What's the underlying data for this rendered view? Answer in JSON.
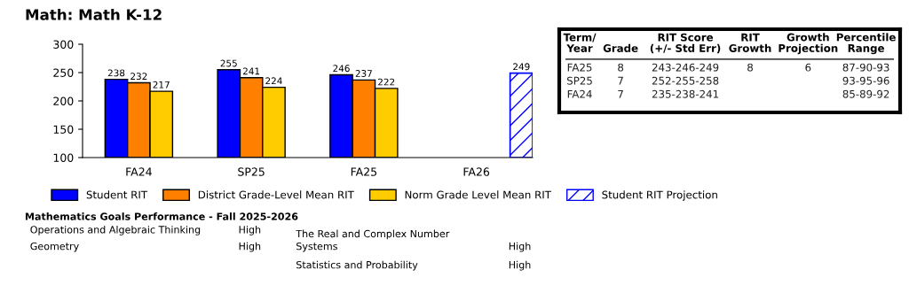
{
  "chart_data": [
    {
      "type": "bar",
      "title": "Math: Math K-12",
      "categories": [
        "FA24",
        "SP25",
        "FA25",
        "FA26"
      ],
      "series": [
        {
          "name": "Student RIT",
          "color": "#0000ff",
          "values": [
            238,
            255,
            246,
            null
          ]
        },
        {
          "name": "District Grade-Level Mean RIT",
          "color": "#ff8000",
          "values": [
            232,
            241,
            237,
            null
          ]
        },
        {
          "name": "Norm Grade Level Mean RIT",
          "color": "#ffcc00",
          "values": [
            217,
            224,
            222,
            null
          ]
        },
        {
          "name": "Student RIT Projection",
          "color": "#0000ff",
          "line_style": "dotted",
          "values": [
            null,
            null,
            null,
            249
          ]
        }
      ],
      "ylim": [
        100,
        300
      ],
      "yticks": [
        100,
        150,
        200,
        250,
        300
      ],
      "data_labels": true,
      "grid": false,
      "legend": "bottom"
    },
    {
      "type": "other",
      "categories": [
        "Term/\nYear",
        "Grade",
        "RIT Score\n(+/- Std Err)",
        "RIT\nGrowth",
        "Growth\nProjection",
        "Percentile\nRange"
      ],
      "annotations": [
        "FA25",
        "8",
        "243-246-249",
        "8",
        "6",
        "87-90-93",
        "SP25",
        "7",
        "252-255-258",
        null,
        null,
        "93-95-96",
        "FA24",
        "7",
        "235-238-241",
        null,
        null,
        "85-89-92"
      ]
    },
    {
      "type": "other",
      "title": "Mathematics Goals Performance - Fall 2025-2026",
      "annotations": [
        "Operations and Algebraic Thinking",
        "High",
        "Geometry",
        "High",
        "The Real and Complex Number\nSystems",
        "High",
        "Statistics and Probability",
        "High"
      ]
    }
  ]
}
